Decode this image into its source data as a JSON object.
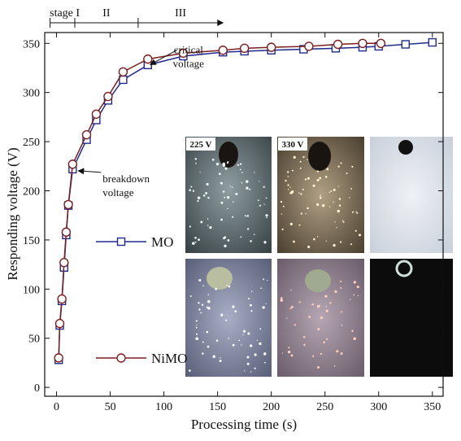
{
  "chart_data": {
    "type": "line",
    "x_label": "Processing time (s)",
    "y_label": "Responding voltage (V)",
    "xlim": [
      -11,
      360
    ],
    "ylim": [
      -9,
      361
    ],
    "xticks": [
      0,
      50,
      100,
      150,
      200,
      250,
      300,
      350
    ],
    "yticks": [
      0,
      50,
      100,
      150,
      200,
      250,
      300,
      350
    ],
    "series": [
      {
        "name": "MO",
        "color": "#1f2a8c",
        "marker": "square",
        "x": [
          2,
          3,
          5,
          7,
          9,
          11,
          15,
          28,
          37,
          48,
          62,
          85,
          118,
          155,
          175,
          200,
          230,
          260,
          285,
          300,
          325,
          350
        ],
        "values": [
          28,
          63,
          88,
          122,
          155,
          185,
          222,
          252,
          272,
          292,
          313,
          328,
          337,
          341,
          342,
          343,
          344,
          345,
          346,
          347,
          349,
          351
        ]
      },
      {
        "name": "NiMO",
        "color": "#7a2020",
        "marker": "circle",
        "x": [
          2,
          3,
          5,
          7,
          9,
          11,
          15,
          28,
          37,
          48,
          62,
          85,
          118,
          155,
          175,
          200,
          235,
          262,
          285,
          302
        ],
        "values": [
          30,
          65,
          90,
          127,
          158,
          186,
          227,
          257,
          278,
          296,
          321,
          334,
          340,
          343,
          345,
          346,
          347,
          349,
          350,
          350
        ]
      }
    ],
    "stage_labels": [
      "stage I",
      "II",
      "III"
    ],
    "stage_bounds": [
      -6,
      17,
      76,
      155
    ],
    "annotations": [
      {
        "lines": [
          "critical",
          "voltage"
        ],
        "x": 85,
        "y": 330
      },
      {
        "lines": [
          "breakdown",
          "voltage"
        ],
        "x": 18,
        "y": 222
      }
    ],
    "photo_labels": [
      "225 V",
      "330 V"
    ]
  }
}
